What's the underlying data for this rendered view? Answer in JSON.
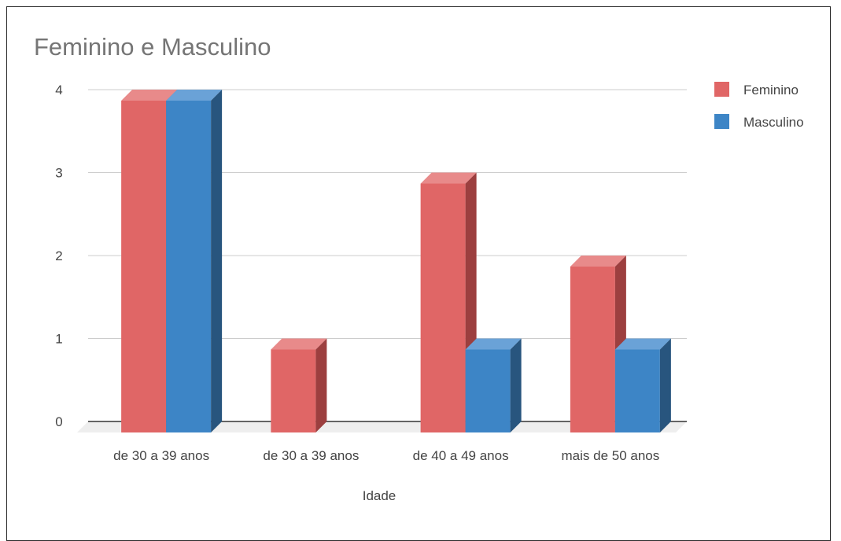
{
  "chart_data": {
    "type": "bar",
    "title": "Feminino e Masculino",
    "xlabel": "Idade",
    "ylabel": "",
    "categories": [
      "de 30 a 39 anos",
      "de 30 a 39 anos",
      "de 40 a 49 anos",
      "mais de 50 anos"
    ],
    "series": [
      {
        "name": "Feminino",
        "values": [
          4,
          1,
          3,
          2
        ],
        "color": "#e06666",
        "top_color": "#e88a8a",
        "side_color": "#9c3f3f"
      },
      {
        "name": "Masculino",
        "values": [
          4,
          0,
          1,
          1
        ],
        "color": "#3d85c6",
        "top_color": "#6aa2d7",
        "side_color": "#28557e"
      }
    ],
    "ylim": [
      0,
      4
    ],
    "yticks": [
      "0",
      "1",
      "2",
      "3",
      "4"
    ],
    "grid": true,
    "legend_position": "right",
    "style": "3d"
  }
}
